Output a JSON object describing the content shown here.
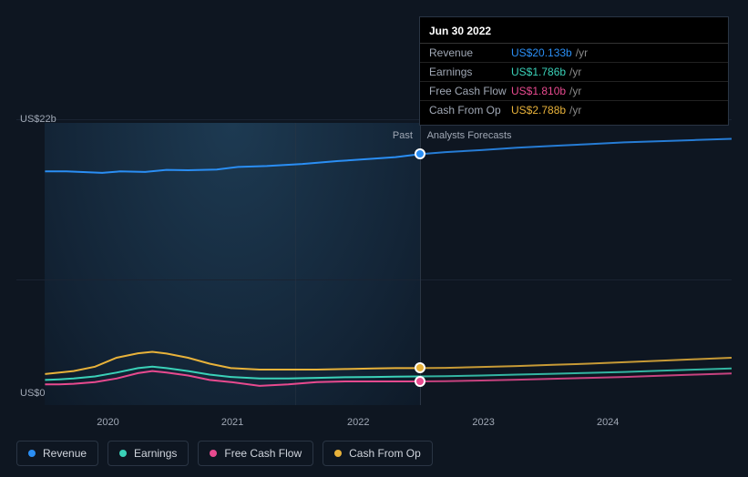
{
  "chart": {
    "type": "line-area",
    "background_past": "#132436",
    "background_forecast": "#0e1621",
    "grid_color": "#1a2332",
    "divider_color": "#2a3544",
    "text_color": "#a0a8b5",
    "x_categories": [
      "2020",
      "2021",
      "2022",
      "2023",
      "2024"
    ],
    "x_positions_pct": [
      12.8,
      30.2,
      47.8,
      65.3,
      82.7
    ],
    "divider_pct": 56.4,
    "extra_divider_pct": 39.0,
    "zone_labels": {
      "past": "Past",
      "forecast": "Analysts Forecasts"
    },
    "y_max_label": "US$22b",
    "y_min_label": "US$0",
    "y_grid_positions_pct": [
      3.5,
      57.5
    ],
    "plot_left_pct": 4.0,
    "plot_right_pct": 100.0,
    "series": [
      {
        "key": "revenue",
        "label": "Revenue",
        "color": "#2a8ef4",
        "line_width": 2,
        "points": [
          [
            4,
            21
          ],
          [
            7,
            21
          ],
          [
            12,
            21.5
          ],
          [
            14.5,
            21
          ],
          [
            18,
            21.2
          ],
          [
            21,
            20.5
          ],
          [
            24,
            20.6
          ],
          [
            28,
            20.4
          ],
          [
            31,
            19.5
          ],
          [
            35,
            19.2
          ],
          [
            40,
            18.5
          ],
          [
            45,
            17.5
          ],
          [
            50,
            16.7
          ],
          [
            53,
            16.2
          ],
          [
            56.4,
            15.2
          ],
          [
            60,
            14.5
          ],
          [
            65,
            13.8
          ],
          [
            70,
            13
          ],
          [
            75,
            12.4
          ],
          [
            80,
            11.8
          ],
          [
            85,
            11.2
          ],
          [
            90,
            10.8
          ],
          [
            95,
            10.4
          ],
          [
            100,
            10
          ]
        ],
        "marker_at": [
          56.4,
          15.2
        ]
      },
      {
        "key": "cash_from_op",
        "label": "Cash From Op",
        "color": "#e8b23a",
        "line_width": 2,
        "points": [
          [
            4,
            89.5
          ],
          [
            6,
            89
          ],
          [
            8,
            88.5
          ],
          [
            11,
            87
          ],
          [
            14,
            84
          ],
          [
            17,
            82.5
          ],
          [
            19,
            82
          ],
          [
            21,
            82.6
          ],
          [
            24,
            84
          ],
          [
            27,
            86
          ],
          [
            30,
            87.5
          ],
          [
            34,
            88
          ],
          [
            38,
            88
          ],
          [
            42,
            88
          ],
          [
            46,
            87.8
          ],
          [
            50,
            87.6
          ],
          [
            53,
            87.5
          ],
          [
            56.4,
            87.5
          ],
          [
            60,
            87.4
          ],
          [
            65,
            87.1
          ],
          [
            70,
            86.8
          ],
          [
            75,
            86.4
          ],
          [
            80,
            86
          ],
          [
            85,
            85.5
          ],
          [
            90,
            85
          ],
          [
            95,
            84.5
          ],
          [
            100,
            84
          ]
        ],
        "marker_at": [
          56.4,
          87.5
        ]
      },
      {
        "key": "free_cash_flow",
        "label": "Free Cash Flow",
        "color": "#e84a8f",
        "line_width": 2,
        "points": [
          [
            4,
            93
          ],
          [
            6,
            93
          ],
          [
            8,
            92.8
          ],
          [
            11,
            92.2
          ],
          [
            14,
            91
          ],
          [
            17,
            89.2
          ],
          [
            19,
            88.5
          ],
          [
            21,
            89
          ],
          [
            24,
            90
          ],
          [
            27,
            91.5
          ],
          [
            30,
            92.2
          ],
          [
            34,
            93.5
          ],
          [
            38,
            93
          ],
          [
            42,
            92.2
          ],
          [
            46,
            92
          ],
          [
            50,
            92
          ],
          [
            53,
            92
          ],
          [
            56.4,
            92
          ],
          [
            60,
            91.9
          ],
          [
            65,
            91.7
          ],
          [
            70,
            91.4
          ],
          [
            75,
            91.1
          ],
          [
            80,
            90.8
          ],
          [
            85,
            90.5
          ],
          [
            90,
            90.1
          ],
          [
            95,
            89.7
          ],
          [
            100,
            89.3
          ]
        ],
        "marker_at": [
          56.4,
          92
        ]
      },
      {
        "key": "earnings",
        "label": "Earnings",
        "color": "#3ad1b8",
        "line_width": 2,
        "points": [
          [
            4,
            91.5
          ],
          [
            6,
            91.3
          ],
          [
            8,
            91
          ],
          [
            11,
            90.3
          ],
          [
            14,
            89
          ],
          [
            17,
            87.5
          ],
          [
            19,
            87
          ],
          [
            21,
            87.5
          ],
          [
            24,
            88.5
          ],
          [
            27,
            89.7
          ],
          [
            30,
            90.5
          ],
          [
            34,
            91
          ],
          [
            38,
            91
          ],
          [
            42,
            90.8
          ],
          [
            46,
            90.6
          ],
          [
            50,
            90.5
          ],
          [
            53,
            90.4
          ],
          [
            56.4,
            90.3
          ],
          [
            60,
            90.2
          ],
          [
            65,
            90
          ],
          [
            70,
            89.7
          ],
          [
            75,
            89.4
          ],
          [
            80,
            89.1
          ],
          [
            85,
            88.8
          ],
          [
            90,
            88.4
          ],
          [
            95,
            88
          ],
          [
            100,
            87.6
          ]
        ]
      }
    ],
    "tooltip": {
      "title": "Jun 30 2022",
      "suffix": "/yr",
      "rows": [
        {
          "label": "Revenue",
          "value": "US$20.133b",
          "color": "#2a8ef4"
        },
        {
          "label": "Earnings",
          "value": "US$1.786b",
          "color": "#3ad1b8"
        },
        {
          "label": "Free Cash Flow",
          "value": "US$1.810b",
          "color": "#e84a8f"
        },
        {
          "label": "Cash From Op",
          "value": "US$2.788b",
          "color": "#e8b23a"
        }
      ]
    },
    "legend": [
      {
        "key": "revenue",
        "label": "Revenue",
        "color": "#2a8ef4"
      },
      {
        "key": "earnings",
        "label": "Earnings",
        "color": "#3ad1b8"
      },
      {
        "key": "free_cash_flow",
        "label": "Free Cash Flow",
        "color": "#e84a8f"
      },
      {
        "key": "cash_from_op",
        "label": "Cash From Op",
        "color": "#e8b23a"
      }
    ]
  }
}
